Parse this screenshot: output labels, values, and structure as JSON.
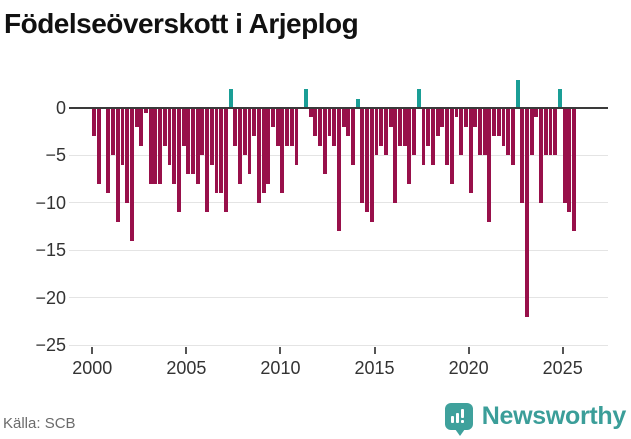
{
  "title": "Födelseöverskott i Arjeplog",
  "source_label": "Källa: SCB",
  "brand": {
    "name": "Newsworthy",
    "logo_icon": "bar-chart-badge-icon"
  },
  "colors": {
    "negative_bar": "#98104a",
    "positive_bar": "#1a9e96",
    "zero_axis": "#3a3a3a",
    "gridline": "#e4e4e4",
    "axis_text": "#333333",
    "source_text": "#6b6b6b",
    "brand_teal": "#3fa19c"
  },
  "chart_data": {
    "type": "bar",
    "title": "Födelseöverskott i Arjeplog",
    "xlabel": "",
    "ylabel": "",
    "frequency": "quarterly",
    "start_period": "2000 Q1",
    "end_period": "2025 Q3",
    "x_ticks": [
      2000,
      2005,
      2010,
      2015,
      2020,
      2025
    ],
    "y_ticks": [
      0,
      -5,
      -10,
      -15,
      -20,
      -25
    ],
    "ylim": [
      -25,
      3.2
    ],
    "grid": "horizontal",
    "legend": "none",
    "values": [
      -3,
      -8,
      0,
      -9,
      -5,
      -12,
      -6,
      -10,
      -14,
      -2,
      -4,
      -0.5,
      -8,
      -8,
      -8,
      -4,
      -6,
      -8,
      -11,
      -4,
      -7,
      -7,
      -8,
      -5,
      -11,
      -6,
      -9,
      -9,
      -11,
      2,
      -4,
      -8,
      -5,
      -7,
      -3,
      -10,
      -9,
      -8,
      -2,
      -4,
      -9,
      -4,
      -4,
      -6,
      0,
      2,
      -1,
      -3,
      -4,
      -7,
      -3,
      -4,
      -13,
      -2,
      -3,
      -6,
      1,
      -10,
      -11,
      -12,
      -5,
      -4,
      -5,
      -2,
      -10,
      -4,
      -4,
      -8,
      -5,
      2,
      -6,
      -4,
      -6,
      -3,
      -2,
      -6,
      -8,
      -1,
      -5,
      -2,
      -9,
      -2,
      -5,
      -5,
      -12,
      -3,
      -3,
      -4,
      -5,
      -6,
      3,
      -10,
      -22,
      -5,
      -1,
      -10,
      -5,
      -5,
      -5,
      2,
      -10,
      -11,
      -13
    ]
  }
}
